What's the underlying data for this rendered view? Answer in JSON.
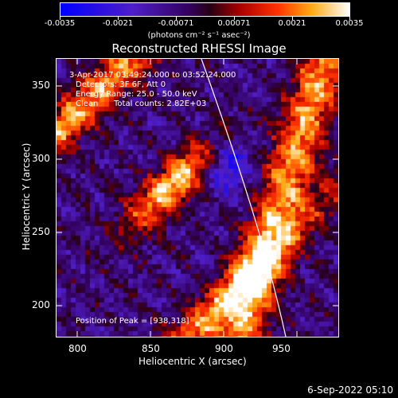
{
  "colorbar": {
    "tick_labels": [
      "-0.0035",
      "-0.0021",
      "-0.00071",
      "0.00071",
      "0.0021",
      "0.0035"
    ],
    "units_text": "(photons cm⁻² s⁻¹ asec⁻²)",
    "min": -0.0035,
    "max": 0.0035
  },
  "title": "Reconstructed RHESSI Image",
  "info": {
    "time_range": "3-Apr-2017 03:49:24.000 to 03:52:24.000",
    "detectors": "Detectors: 3F 6F, Att 0",
    "energy_range": "Energy Range: 25.0 - 50.0 keV",
    "clean_label": "Clean",
    "total_counts": "Total counts: 2.82E+03",
    "peak_position": "Position of Peak = [938,318]"
  },
  "x_axis": {
    "title": "Heliocentric X (arcsec)",
    "ticks": [
      "800",
      "850",
      "900",
      "950"
    ],
    "range": [
      788,
      982
    ]
  },
  "y_axis": {
    "title": "Heliocentric Y (arcsec)",
    "ticks": [
      "200",
      "250",
      "300",
      "350"
    ],
    "range": [
      176,
      370
    ]
  },
  "footer": {
    "date": "6-Sep-2022 05:10"
  },
  "colors": {
    "background": "#000000",
    "limb_line": "#ffffff"
  }
}
